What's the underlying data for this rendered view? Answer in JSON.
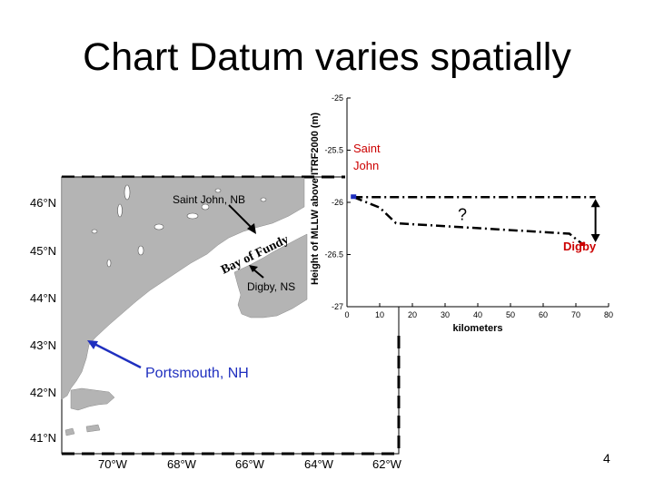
{
  "slide": {
    "title": "Chart Datum varies spatially",
    "page_number": "4"
  },
  "map": {
    "lat_labels": [
      "46°N",
      "45°N",
      "44°N",
      "43°N",
      "42°N",
      "41°N"
    ],
    "lon_labels": [
      "70°W",
      "68°W",
      "66°W",
      "64°W",
      "62°W"
    ],
    "annotations": {
      "saint_john_nb": "Saint John, NB",
      "bay_of_fundy": "Bay of Fundy",
      "digby_ns": "Digby, NS",
      "portsmouth_nh": "Portsmouth, NH"
    },
    "colors": {
      "land": "#b4b4b4",
      "water": "#ffffff",
      "arrow_blue": "#1f2fbf",
      "arrow_black": "#000000"
    }
  },
  "chart_data": {
    "type": "line",
    "xlabel": "kilometers",
    "ylabel": "Height of MLLW above ITRF2000 (m)",
    "xlim": [
      0,
      80
    ],
    "ylim": [
      -27,
      -25
    ],
    "y_inverted": true,
    "x_ticks": [
      0,
      10,
      20,
      30,
      40,
      50,
      60,
      70,
      80
    ],
    "y_ticks": [
      -25,
      -25.5,
      -26,
      -26.5,
      -27
    ],
    "y_tick_labels": [
      "-25",
      "-25.5",
      "-26",
      "-26.5",
      "-27"
    ],
    "series": [
      {
        "style": "dash-dot",
        "x": [
          2,
          10,
          15,
          68,
          72
        ],
        "y": [
          -25.95,
          -26.05,
          -26.2,
          -26.3,
          -26.4
        ]
      },
      {
        "style": "dash-dot",
        "x": [
          2,
          76
        ],
        "y": [
          -25.95,
          -25.95
        ]
      }
    ],
    "endpoints": [
      {
        "label": "Saint John",
        "x": 2,
        "y": -25.95
      },
      {
        "label": "Digby",
        "x": 72,
        "y": -26.4
      }
    ],
    "annotations": {
      "question": "?"
    },
    "colors": {
      "line": "#000000",
      "endpoint": "#1f2fbf",
      "digby_marker": "#cc0000",
      "label_red": "#cc0000"
    }
  }
}
